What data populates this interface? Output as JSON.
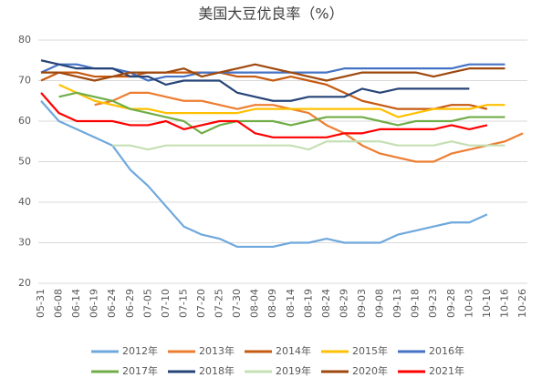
{
  "chart_data": {
    "type": "line",
    "title": "美国大豆优良率（%）",
    "categories": [
      "05-31",
      "06-08",
      "06-14",
      "06-19",
      "06-24",
      "06-29",
      "07-05",
      "07-10",
      "07-15",
      "07-20",
      "07-25",
      "07-30",
      "08-04",
      "08-09",
      "08-14",
      "08-19",
      "08-24",
      "08-29",
      "09-03",
      "09-08",
      "09-13",
      "09-18",
      "09-23",
      "09-28",
      "10-03",
      "10-10",
      "10-16",
      "10-26"
    ],
    "ylim": [
      20,
      80
    ],
    "yticks": [
      20,
      30,
      40,
      50,
      60,
      70,
      80
    ],
    "grid": true,
    "legend": "bottom",
    "series": [
      {
        "name": "2012年",
        "color": "#6fa8dc",
        "values": [
          65,
          60,
          58,
          56,
          54,
          48,
          44,
          39,
          34,
          32,
          31,
          29,
          29,
          29,
          30,
          30,
          31,
          30,
          30,
          30,
          32,
          33,
          34,
          35,
          35,
          37,
          null,
          null
        ]
      },
      {
        "name": "2013年",
        "color": "#ed7d31",
        "values": [
          null,
          null,
          null,
          64,
          65,
          67,
          67,
          66,
          65,
          65,
          64,
          63,
          64,
          64,
          63,
          62,
          59,
          57,
          54,
          52,
          51,
          50,
          50,
          52,
          53,
          54,
          55,
          57
        ]
      },
      {
        "name": "2014年",
        "color": "#c55a11",
        "values": [
          70,
          72,
          72,
          71,
          71,
          71,
          72,
          72,
          72,
          72,
          72,
          71,
          71,
          70,
          71,
          70,
          69,
          67,
          65,
          64,
          63,
          63,
          63,
          64,
          64,
          63,
          null,
          null
        ]
      },
      {
        "name": "2015年",
        "color": "#ffc000",
        "values": [
          null,
          69,
          67,
          65,
          64,
          63,
          63,
          62,
          62,
          62,
          62,
          62,
          63,
          63,
          63,
          63,
          63,
          63,
          63,
          63,
          61,
          62,
          63,
          63,
          63,
          64,
          64,
          null
        ]
      },
      {
        "name": "2016年",
        "color": "#4472c4",
        "values": [
          72,
          74,
          74,
          73,
          73,
          72,
          70,
          71,
          71,
          72,
          72,
          72,
          72,
          72,
          72,
          72,
          72,
          73,
          73,
          73,
          73,
          73,
          73,
          73,
          74,
          74,
          74,
          null
        ]
      },
      {
        "name": "2017年",
        "color": "#70ad47",
        "values": [
          null,
          66,
          67,
          66,
          65,
          63,
          62,
          61,
          60,
          57,
          59,
          60,
          60,
          60,
          59,
          60,
          61,
          61,
          61,
          60,
          59,
          60,
          60,
          60,
          61,
          61,
          61,
          null
        ]
      },
      {
        "name": "2018年",
        "color": "#264478",
        "values": [
          75,
          74,
          73,
          73,
          73,
          71,
          71,
          69,
          70,
          70,
          70,
          67,
          66,
          65,
          65,
          66,
          66,
          66,
          68,
          67,
          68,
          68,
          68,
          68,
          68,
          null,
          null,
          null
        ]
      },
      {
        "name": "2019年",
        "color": "#c5e0b4",
        "values": [
          null,
          null,
          null,
          null,
          54,
          54,
          53,
          54,
          54,
          54,
          54,
          54,
          54,
          54,
          54,
          53,
          55,
          55,
          55,
          55,
          54,
          54,
          54,
          55,
          54,
          54,
          54,
          null
        ]
      },
      {
        "name": "2020年",
        "color": "#9e480e",
        "values": [
          72,
          72,
          71,
          70,
          71,
          72,
          72,
          72,
          73,
          71,
          72,
          73,
          74,
          73,
          72,
          71,
          70,
          71,
          72,
          72,
          72,
          72,
          71,
          72,
          73,
          73,
          73,
          null
        ]
      },
      {
        "name": "2021年",
        "color": "#ff0000",
        "values": [
          67,
          62,
          60,
          60,
          60,
          59,
          59,
          60,
          58,
          59,
          60,
          60,
          57,
          56,
          56,
          56,
          56,
          57,
          57,
          58,
          58,
          58,
          58,
          59,
          58,
          59,
          null,
          null
        ]
      }
    ]
  }
}
